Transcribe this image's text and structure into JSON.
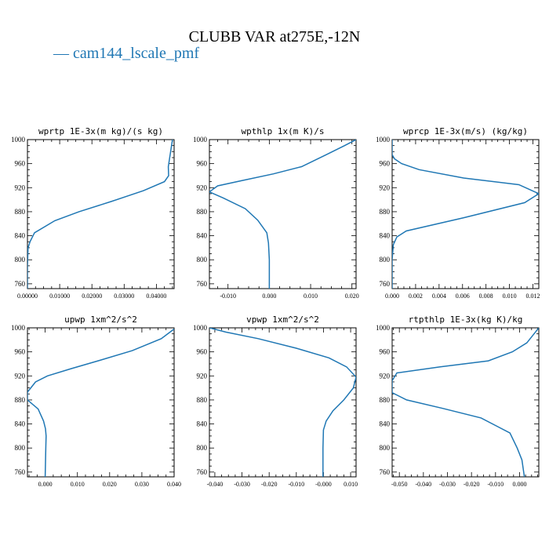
{
  "title": "CLUBB VAR at275E,-12N",
  "legend": {
    "line": "—",
    "label": "cam144_lscale_pmf",
    "color": "#1f77b4"
  },
  "chart_data": [
    {
      "type": "line",
      "title": "wprtp  1E-3x(m kg)/(s kg)",
      "xlim": [
        0.0,
        0.0455
      ],
      "ylim": [
        1000,
        752
      ],
      "yticks": [
        760,
        800,
        840,
        880,
        920,
        960,
        1000
      ],
      "xticks": [
        0.0,
        0.01,
        0.02,
        0.03,
        0.04
      ],
      "xtick_labels": [
        "0.00000",
        "0.01000",
        "0.02000",
        "0.03000",
        "0.04000"
      ],
      "series": [
        {
          "x": [
            0.0,
            0.0,
            0.0002,
            0.0008,
            0.0022,
            0.0085,
            0.016,
            0.026,
            0.036,
            0.0425,
            0.0438,
            0.0437,
            0.045
          ],
          "y": [
            752,
            790,
            820,
            830,
            845,
            865,
            880,
            897,
            915,
            930,
            940,
            955,
            1000
          ]
        }
      ]
    },
    {
      "type": "line",
      "title": "wpthlp  1x(m K)/s",
      "xlim": [
        -0.0145,
        0.021
      ],
      "ylim": [
        1000,
        752
      ],
      "yticks": [
        760,
        800,
        840,
        880,
        920,
        960,
        1000
      ],
      "xticks": [
        -0.01,
        0.0,
        0.01,
        0.02
      ],
      "xtick_labels": [
        "-0.010",
        "0.000",
        "0.010",
        "0.020"
      ],
      "series": [
        {
          "x": [
            0.0,
            0.0,
            -0.0002,
            -0.0006,
            -0.0028,
            -0.0058,
            -0.0112,
            -0.0145,
            -0.0125,
            -0.0065,
            0.001,
            0.0078,
            0.0138,
            0.0182,
            0.021
          ],
          "y": [
            752,
            800,
            828,
            845,
            866,
            885,
            903,
            913,
            923,
            932,
            943,
            955,
            975,
            990,
            1000
          ]
        }
      ]
    },
    {
      "type": "line",
      "title": "wprcp  1E-3x(m/s) (kg/kg)",
      "xlim": [
        0.0,
        0.0125
      ],
      "ylim": [
        1000,
        752
      ],
      "yticks": [
        760,
        800,
        840,
        880,
        920,
        960,
        1000
      ],
      "xticks": [
        0.0,
        0.002,
        0.004,
        0.006,
        0.008,
        0.01,
        0.012
      ],
      "xtick_labels": [
        "0.000",
        "0.002",
        "0.004",
        "0.006",
        "0.008",
        "0.010",
        "0.012"
      ],
      "series": [
        {
          "x": [
            0.0,
            0.0,
            0.0001,
            0.0004,
            0.0012,
            0.0061,
            0.0113,
            0.0125,
            0.0108,
            0.0061,
            0.0023,
            0.0008,
            0.0002,
            0.0,
            0.0
          ],
          "y": [
            752,
            800,
            825,
            838,
            848,
            870,
            895,
            910,
            925,
            936,
            950,
            960,
            968,
            975,
            1000
          ]
        }
      ]
    },
    {
      "type": "line",
      "title": "upwp  1xm^2/s^2",
      "xlim": [
        -0.0055,
        0.04
      ],
      "ylim": [
        1000,
        752
      ],
      "yticks": [
        760,
        800,
        840,
        880,
        920,
        960,
        1000
      ],
      "xticks": [
        0.0,
        0.01,
        0.02,
        0.03,
        0.04
      ],
      "xtick_labels": [
        "0.000",
        "0.010",
        "0.020",
        "0.030",
        "0.040"
      ],
      "series": [
        {
          "x": [
            0.0,
            0.0002,
            0.0003,
            0.0001,
            -0.0005,
            -0.0022,
            -0.0055,
            -0.0055,
            -0.003,
            0.0007,
            0.008,
            0.017,
            0.027,
            0.036,
            0.04
          ],
          "y": [
            752,
            800,
            820,
            832,
            845,
            865,
            880,
            893,
            910,
            920,
            932,
            946,
            962,
            982,
            998
          ]
        }
      ]
    },
    {
      "type": "line",
      "title": "vpwp  1xm^2/s^2",
      "xlim": [
        -0.042,
        0.012
      ],
      "ylim": [
        1000,
        752
      ],
      "yticks": [
        760,
        800,
        840,
        880,
        920,
        960,
        1000
      ],
      "xticks": [
        -0.04,
        -0.03,
        -0.02,
        -0.01,
        0.0,
        0.01
      ],
      "xtick_labels": [
        "-0.040",
        "-0.030",
        "-0.020",
        "-0.010",
        "-0.000",
        "0.010"
      ],
      "series": [
        {
          "x": [
            -0.0002,
            -0.0002,
            0.0,
            0.001,
            0.0035,
            0.0075,
            0.011,
            0.012,
            0.0085,
            0.002,
            -0.01,
            -0.024,
            -0.036,
            -0.042
          ],
          "y": [
            752,
            800,
            830,
            845,
            862,
            880,
            900,
            918,
            935,
            950,
            966,
            982,
            993,
            1000
          ]
        }
      ]
    },
    {
      "type": "line",
      "title": "rtpthlp  1E-3x(kg K)/kg",
      "xlim": [
        -0.053,
        0.008
      ],
      "ylim": [
        1000,
        752
      ],
      "yticks": [
        760,
        800,
        840,
        880,
        920,
        960,
        1000
      ],
      "xticks": [
        -0.05,
        -0.04,
        -0.03,
        -0.02,
        -0.01,
        0.0
      ],
      "xtick_labels": [
        "-0.050",
        "-0.040",
        "-0.030",
        "-0.020",
        "-0.010",
        "0.000"
      ],
      "series": [
        {
          "x": [
            0.002,
            0.001,
            -0.001,
            -0.004,
            -0.016,
            -0.032,
            -0.047,
            -0.053,
            -0.053,
            -0.051,
            -0.033,
            -0.013,
            -0.003,
            0.003,
            0.006,
            0.008
          ],
          "y": [
            752,
            780,
            800,
            825,
            850,
            866,
            880,
            892,
            912,
            925,
            935,
            945,
            960,
            975,
            990,
            1000
          ]
        }
      ]
    }
  ]
}
